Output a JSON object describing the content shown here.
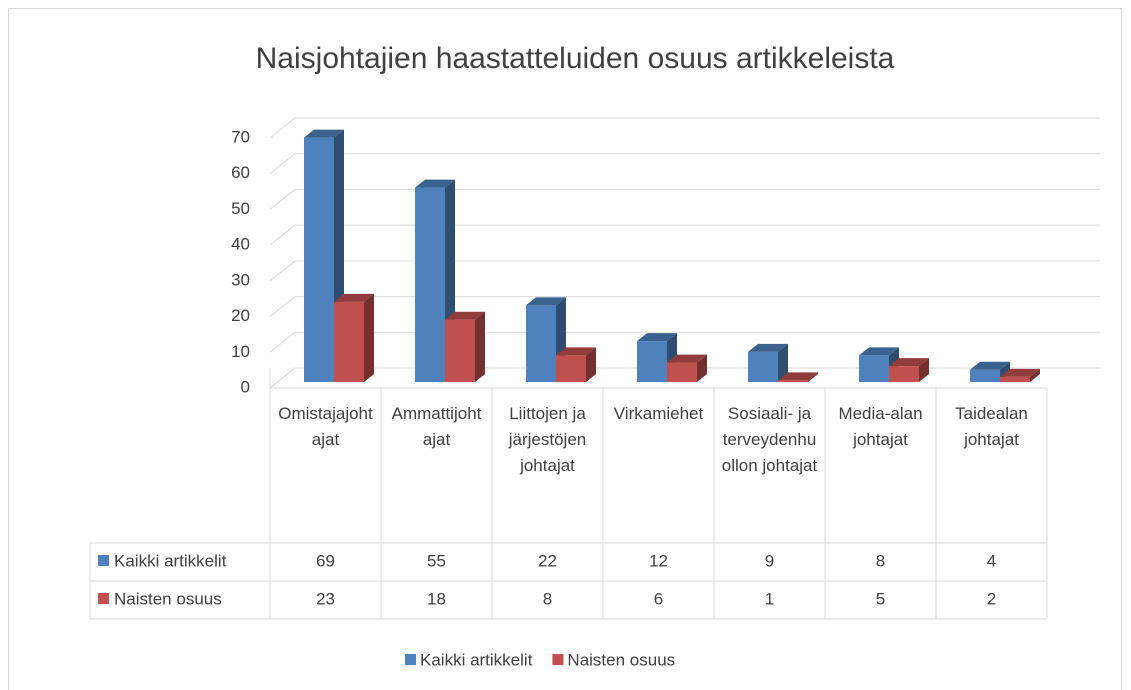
{
  "chart_data": {
    "type": "bar3d",
    "title": "Naisjohtajien haastatteluiden osuus artikkeleista",
    "categories": [
      "Omistajajohtajat",
      "Ammattijohtajat",
      "Liittojen ja järjestöjen johtajat",
      "Virkamiehet",
      "Sosiaali- ja terveydenhuollon johtajat",
      "Media-alan johtajat",
      "Taidealan johtajat"
    ],
    "series": [
      {
        "name": "Kaikki artikkelit",
        "color": "#4f81bd",
        "values": [
          69,
          55,
          22,
          12,
          9,
          8,
          4
        ]
      },
      {
        "name": "Naisten osuus",
        "color": "#c0504d",
        "values": [
          23,
          18,
          8,
          6,
          1,
          5,
          2
        ]
      }
    ],
    "ylim": [
      0,
      70
    ],
    "yticks": [
      0,
      10,
      20,
      30,
      40,
      50,
      60,
      70
    ],
    "grid": true,
    "legend": "bottom",
    "data_table": true
  }
}
